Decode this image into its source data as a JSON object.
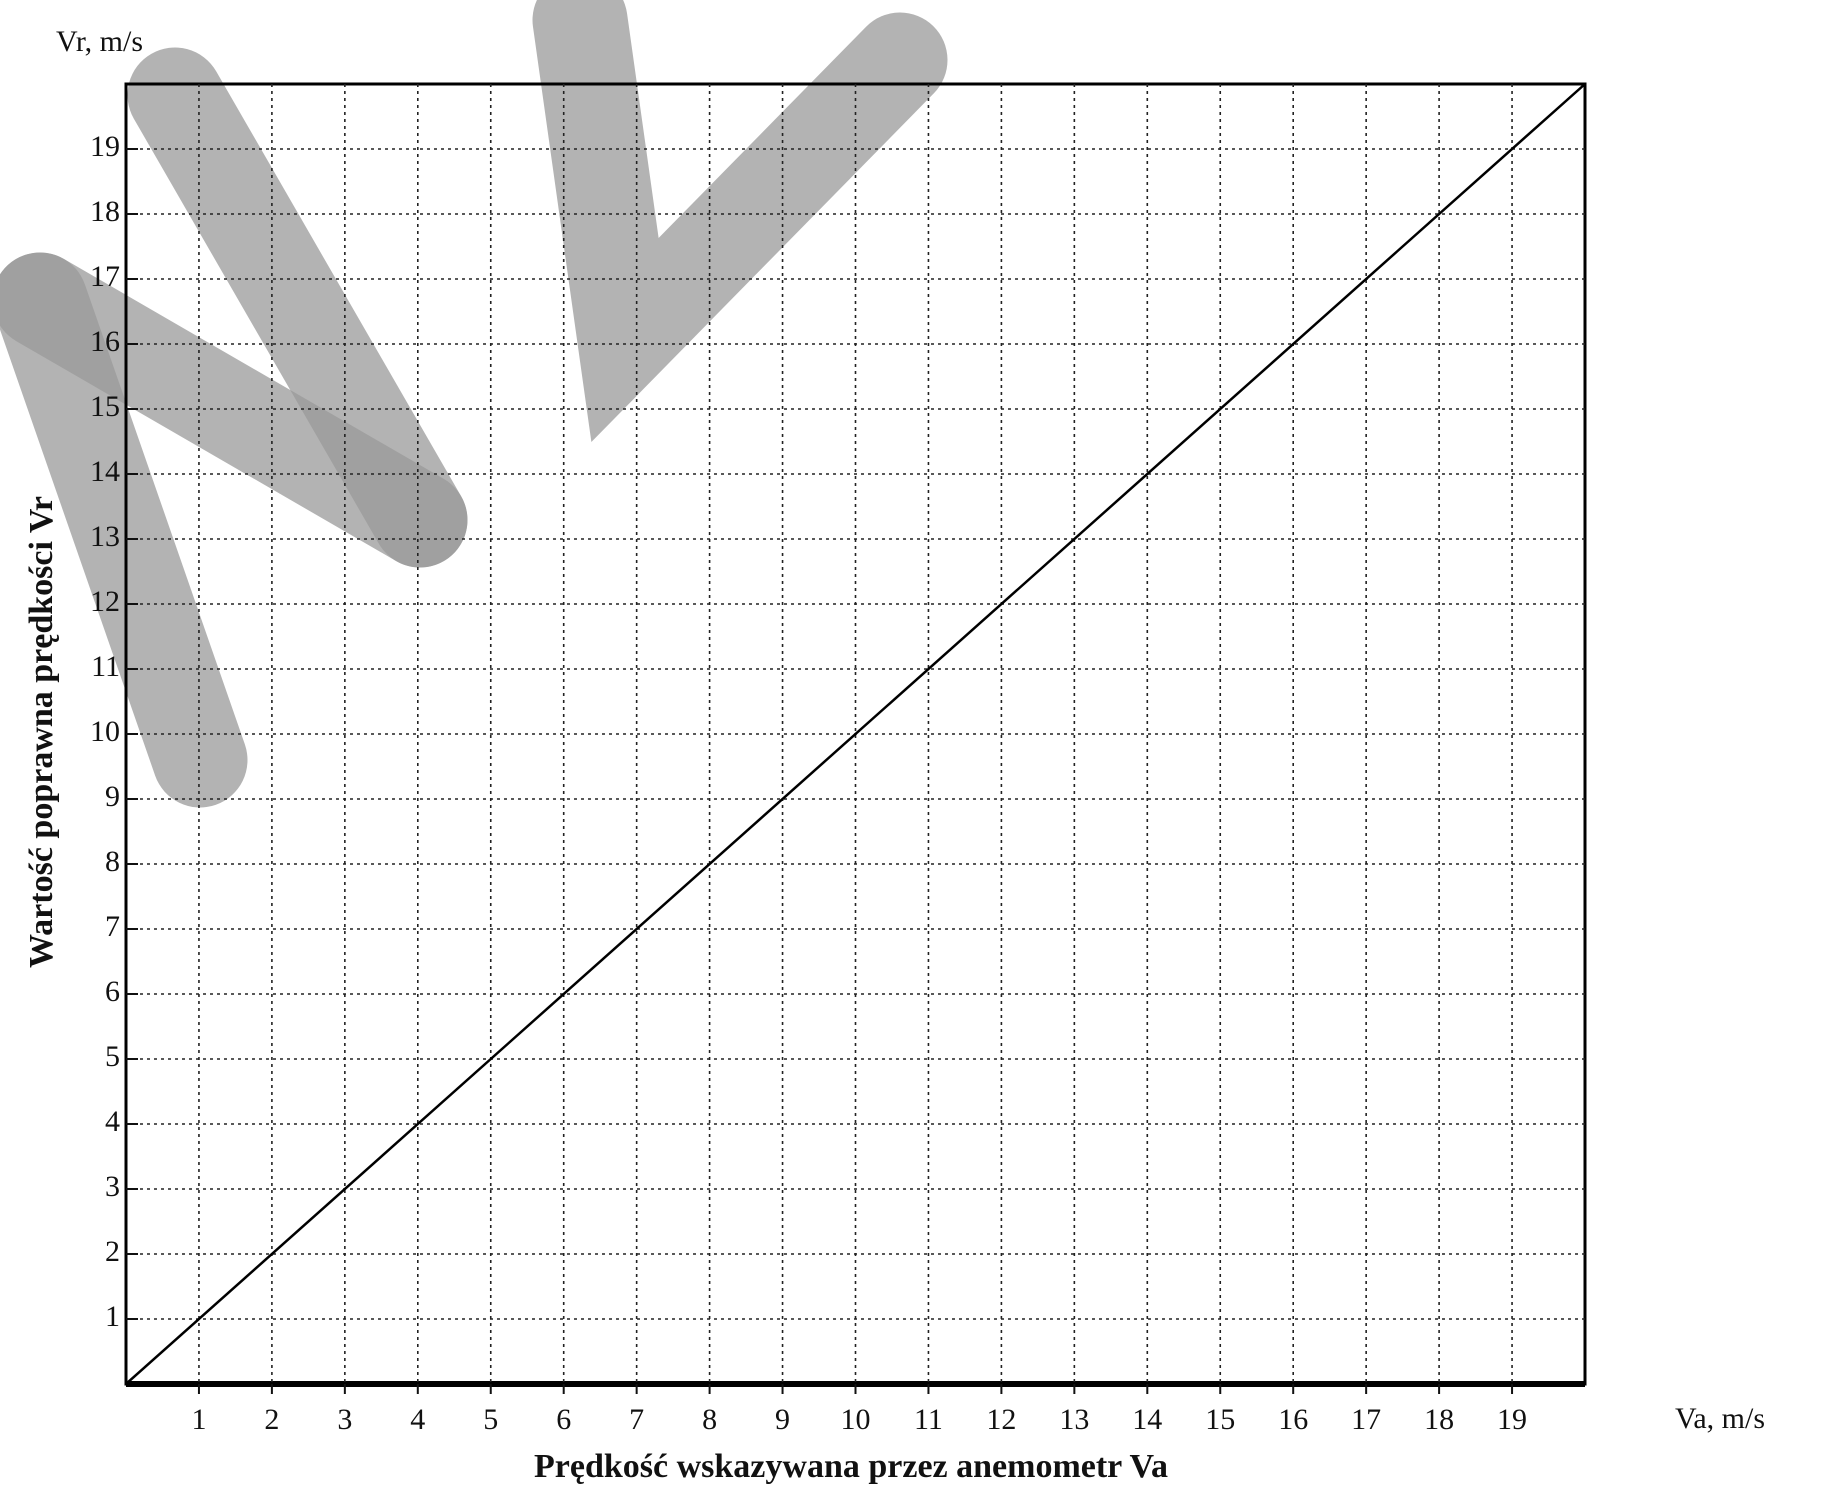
{
  "chart_data": {
    "type": "line",
    "y_unit_label": "Vr, m/s",
    "x_unit_label": "Va, m/s",
    "x_label": "Prędkość wskazywana przez anemometr Va",
    "y_label": "Wartość poprawna prędkości Vr",
    "x": [
      0,
      20
    ],
    "series": [
      {
        "color": "#000000",
        "values": [
          0,
          20
        ]
      }
    ],
    "xlim": [
      0,
      20
    ],
    "ylim": [
      0,
      20
    ],
    "xticks": [
      1,
      2,
      3,
      4,
      5,
      6,
      7,
      8,
      9,
      10,
      11,
      12,
      13,
      14,
      15,
      16,
      17,
      18,
      19
    ],
    "yticks": [
      1,
      2,
      3,
      4,
      5,
      6,
      7,
      8,
      9,
      10,
      11,
      12,
      13,
      14,
      15,
      16,
      17,
      18,
      19
    ],
    "grid": true
  }
}
